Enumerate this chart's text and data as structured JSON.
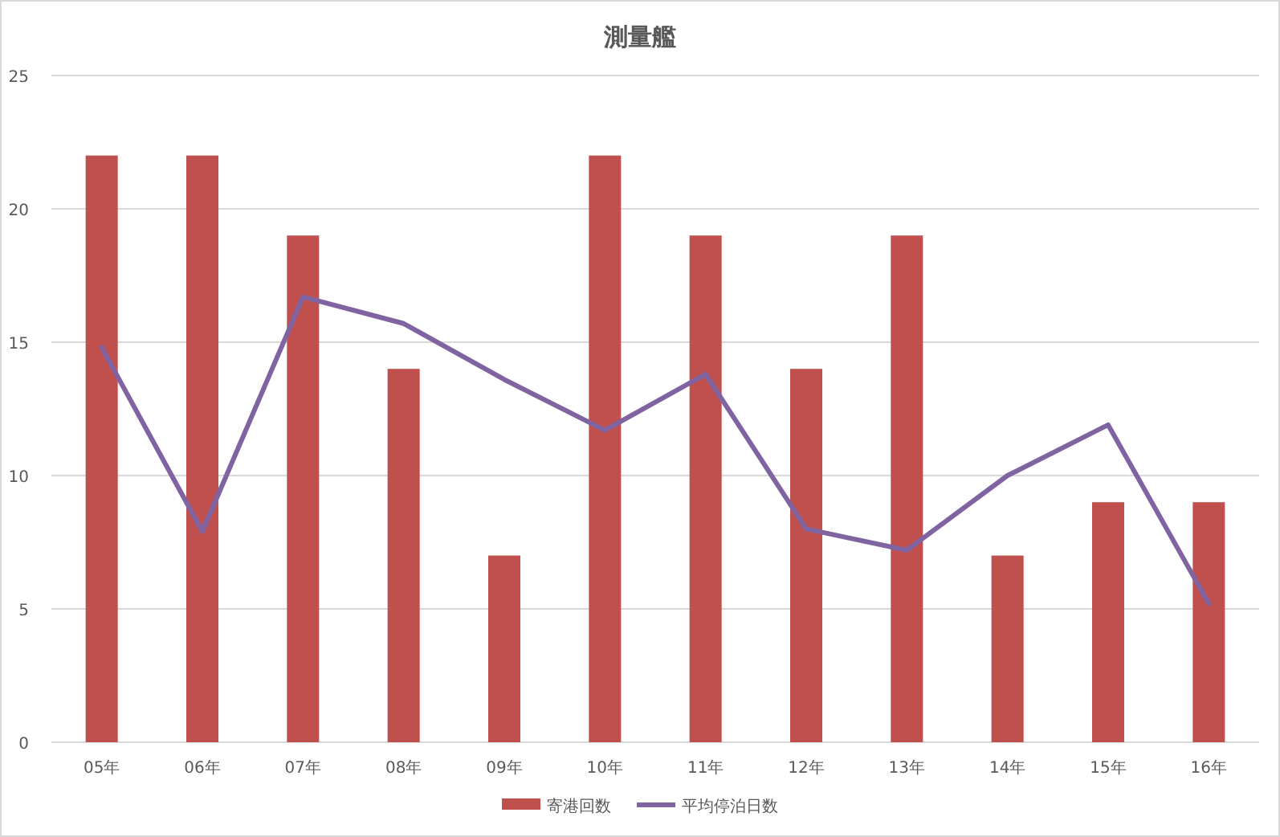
{
  "chart_data": {
    "type": "bar",
    "title": "測量艦",
    "categories": [
      "05年",
      "06年",
      "07年",
      "08年",
      "09年",
      "10年",
      "11年",
      "12年",
      "13年",
      "14年",
      "15年",
      "16年"
    ],
    "series": [
      {
        "name": "寄港回数",
        "color": "#c0504d",
        "values": [
          22,
          22,
          19,
          14,
          7,
          22,
          19,
          14,
          19,
          7,
          9,
          9
        ]
      },
      {
        "name": "平均停泊日数",
        "type": "line",
        "color": "#8064a2",
        "values": [
          14.8,
          7.9,
          16.7,
          15.7,
          13.6,
          11.7,
          13.8,
          8.0,
          7.2,
          10,
          11.9,
          5.2
        ]
      }
    ],
    "ylim": [
      0,
      25
    ],
    "yticks": [
      0,
      5,
      10,
      15,
      20,
      25
    ],
    "grid": "y",
    "legend": "bottom"
  }
}
